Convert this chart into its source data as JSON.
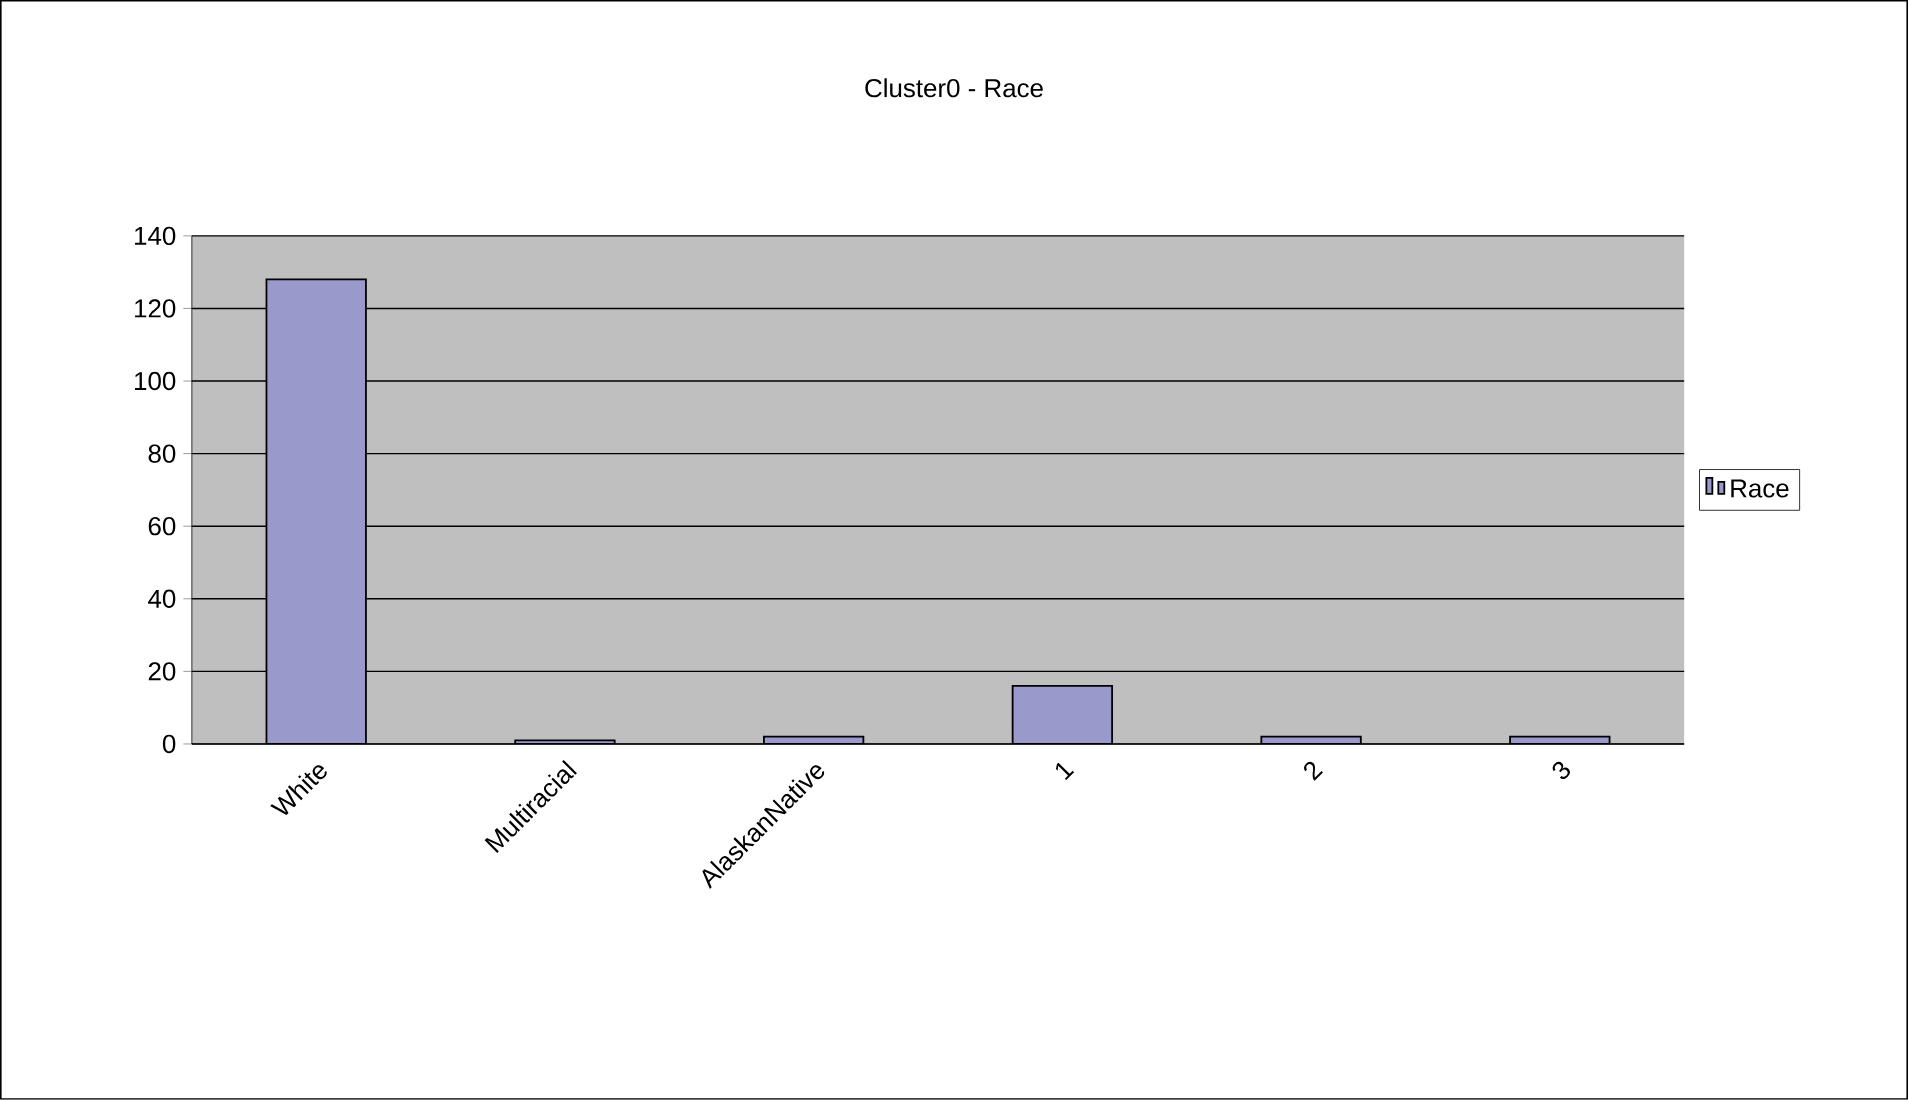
{
  "chart_data": {
    "type": "bar",
    "title": "Cluster0 - Race",
    "categories": [
      "White",
      "Multiracial",
      "AlaskanNative",
      "1",
      "2",
      "3"
    ],
    "series": [
      {
        "name": "Race",
        "color": "#9999cc",
        "values": [
          128,
          1,
          2,
          16,
          2,
          2
        ]
      }
    ],
    "ylim": [
      0,
      140
    ],
    "yticks": [
      0,
      20,
      40,
      60,
      80,
      100,
      120,
      140
    ],
    "grid": "y",
    "legend": "right"
  }
}
